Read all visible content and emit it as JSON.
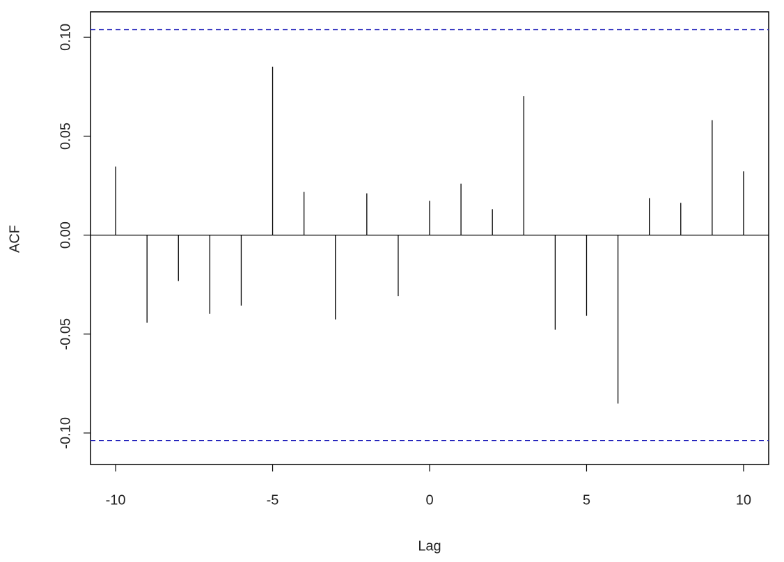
{
  "chart_data": {
    "type": "acf",
    "x_label": "Lag",
    "y_label": "ACF",
    "x": [
      -10,
      -9,
      -8,
      -7,
      -6,
      -5,
      -4,
      -3,
      -2,
      -1,
      0,
      1,
      2,
      3,
      4,
      5,
      6,
      7,
      8,
      9,
      10
    ],
    "values": [
      0.0346,
      -0.0443,
      -0.0232,
      -0.0398,
      -0.0356,
      0.0851,
      0.0218,
      -0.0426,
      0.0211,
      -0.0308,
      0.0173,
      0.026,
      0.0131,
      0.0702,
      -0.0478,
      -0.0408,
      -0.0851,
      0.0187,
      0.0163,
      0.0581,
      0.0322
    ],
    "color": "#000000",
    "conf_lines": [
      0.1038,
      -0.1038
    ],
    "conf_color": "#2222bb",
    "xlim": [
      -10.8,
      10.8
    ],
    "xticks": [
      -10,
      -5,
      0,
      5,
      10
    ],
    "ylim": [
      -0.1159,
      0.1128
    ],
    "yticks": [
      {
        "value": -0.1,
        "label": "-0.10"
      },
      {
        "value": -0.05,
        "label": "-0.05"
      },
      {
        "value": 0,
        "label": "0.00"
      },
      {
        "value": 0.05,
        "label": "0.05"
      },
      {
        "value": 0.1,
        "label": "0.10"
      }
    ]
  }
}
